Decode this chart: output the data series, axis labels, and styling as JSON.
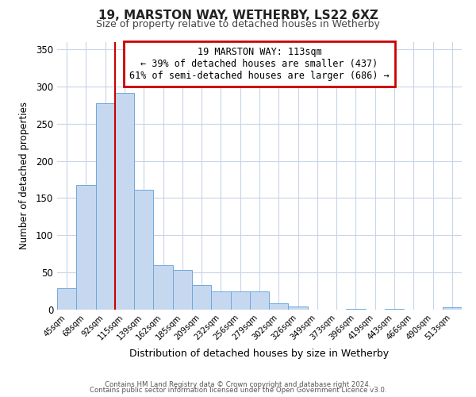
{
  "title1": "19, MARSTON WAY, WETHERBY, LS22 6XZ",
  "title2": "Size of property relative to detached houses in Wetherby",
  "xlabel": "Distribution of detached houses by size in Wetherby",
  "ylabel": "Number of detached properties",
  "bar_labels": [
    "45sqm",
    "68sqm",
    "92sqm",
    "115sqm",
    "139sqm",
    "162sqm",
    "185sqm",
    "209sqm",
    "232sqm",
    "256sqm",
    "279sqm",
    "302sqm",
    "326sqm",
    "349sqm",
    "373sqm",
    "396sqm",
    "419sqm",
    "443sqm",
    "466sqm",
    "490sqm",
    "513sqm"
  ],
  "bar_values": [
    29,
    168,
    277,
    291,
    161,
    60,
    53,
    33,
    25,
    25,
    25,
    9,
    4,
    0,
    0,
    1,
    0,
    1,
    0,
    0,
    3
  ],
  "bar_color": "#c5d8f0",
  "bar_edgecolor": "#6fa8dc",
  "vline_color": "#cc0000",
  "vline_index": 3,
  "ylim": [
    0,
    360
  ],
  "yticks": [
    0,
    50,
    100,
    150,
    200,
    250,
    300,
    350
  ],
  "annotation_title": "19 MARSTON WAY: 113sqm",
  "annotation_line1": "← 39% of detached houses are smaller (437)",
  "annotation_line2": "61% of semi-detached houses are larger (686) →",
  "annotation_box_edgecolor": "#cc0000",
  "footer1": "Contains HM Land Registry data © Crown copyright and database right 2024.",
  "footer2": "Contains public sector information licensed under the Open Government Licence v3.0.",
  "background_color": "#ffffff",
  "plot_bg_color": "#ffffff",
  "grid_color": "#c8d4e8"
}
